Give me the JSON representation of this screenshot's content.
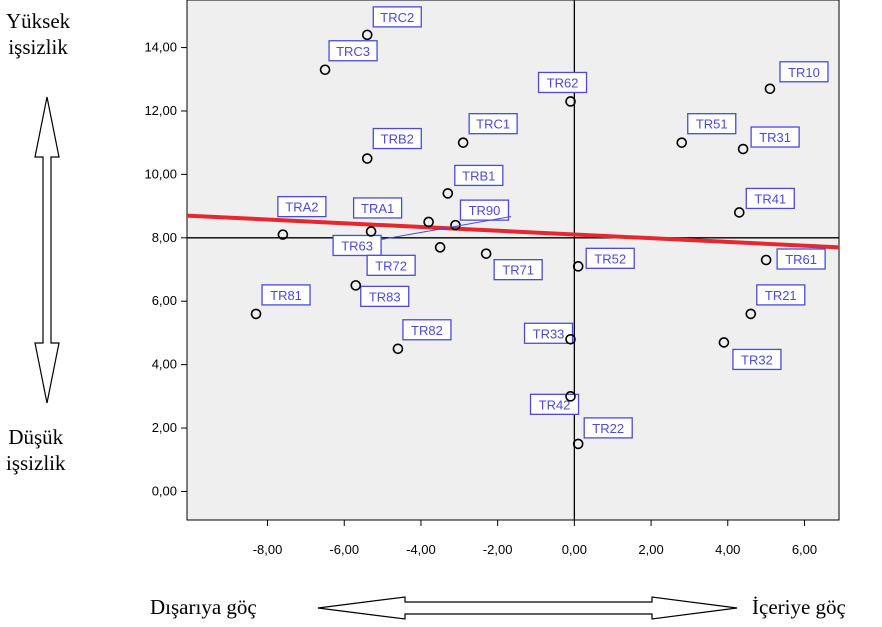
{
  "labels": {
    "high_unemployment": [
      "Yüksek",
      "işsizlik"
    ],
    "low_unemployment": [
      "Düşük",
      "işsizlik"
    ],
    "out_migration": "Dışarıya göç",
    "in_migration": "İçeriye göç"
  },
  "colors": {
    "plot_background": "#efefef",
    "trend_line": "#e8262e",
    "label_color": "#4a4ae0"
  },
  "chart_data": {
    "type": "scatter",
    "title": "",
    "xlabel": "",
    "ylabel": "",
    "xlim": [
      -10.1,
      6.9
    ],
    "ylim": [
      -0.9,
      15.5
    ],
    "x_ticks": [
      -8,
      -6,
      -4,
      -2,
      0,
      2,
      4,
      6
    ],
    "x_tick_labels": [
      "-8,00",
      "-6,00",
      "-4,00",
      "-2,00",
      "0,00",
      "2,00",
      "4,00",
      "6,00"
    ],
    "y_ticks": [
      0,
      2,
      4,
      6,
      8,
      10,
      12,
      14
    ],
    "y_tick_labels": [
      "0,00",
      "2,00",
      "4,00",
      "6,00",
      "8,00",
      "10,00",
      "12,00",
      "14,00"
    ],
    "reference_lines": {
      "x": 0,
      "y": 8
    },
    "trend_line": {
      "x": [
        -10.1,
        6.9
      ],
      "y": [
        8.7,
        7.7
      ]
    },
    "grid": false,
    "points": [
      {
        "label": "TRC2",
        "x": -5.4,
        "y": 14.4
      },
      {
        "label": "TRC3",
        "x": -6.5,
        "y": 13.3
      },
      {
        "label": "TR62",
        "x": -0.1,
        "y": 12.3
      },
      {
        "label": "TR10",
        "x": 5.1,
        "y": 12.7
      },
      {
        "label": "TRC1",
        "x": -2.9,
        "y": 11.0
      },
      {
        "label": "TR51",
        "x": 2.8,
        "y": 11.0
      },
      {
        "label": "TR31",
        "x": 4.4,
        "y": 10.8
      },
      {
        "label": "TRB2",
        "x": -5.4,
        "y": 10.5
      },
      {
        "label": "TRB1",
        "x": -3.3,
        "y": 9.4
      },
      {
        "label": "TR41",
        "x": 4.3,
        "y": 8.8
      },
      {
        "label": "TR90",
        "x": -3.1,
        "y": 8.4
      },
      {
        "label": "TRA1",
        "x": -3.8,
        "y": 8.5
      },
      {
        "label": "TRA2",
        "x": -7.6,
        "y": 8.1
      },
      {
        "label": "TR63",
        "x": -5.3,
        "y": 8.2
      },
      {
        "label": "TR72",
        "x": -3.5,
        "y": 7.7
      },
      {
        "label": "TR71",
        "x": -2.3,
        "y": 7.5
      },
      {
        "label": "TR52",
        "x": 0.1,
        "y": 7.1
      },
      {
        "label": "TR61",
        "x": 5.0,
        "y": 7.3
      },
      {
        "label": "TR81",
        "x": -8.3,
        "y": 5.6
      },
      {
        "label": "TR83",
        "x": -5.7,
        "y": 6.5
      },
      {
        "label": "TR21",
        "x": 4.6,
        "y": 5.6
      },
      {
        "label": "TR82",
        "x": -4.6,
        "y": 4.5
      },
      {
        "label": "TR33",
        "x": -0.1,
        "y": 4.8
      },
      {
        "label": "TR32",
        "x": 3.9,
        "y": 4.7
      },
      {
        "label": "TR42",
        "x": -0.1,
        "y": 3.0
      },
      {
        "label": "TR22",
        "x": 0.1,
        "y": 1.5
      }
    ]
  }
}
